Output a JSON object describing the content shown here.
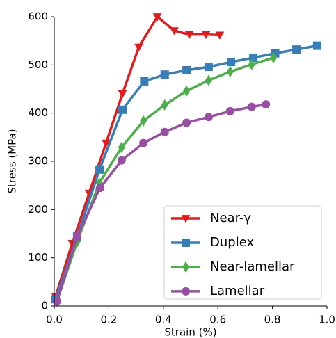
{
  "chart_data": {
    "type": "line",
    "xlabel": "Strain (%)",
    "ylabel": "Stress (MPa)",
    "xlim": [
      0,
      1
    ],
    "ylim": [
      0,
      600
    ],
    "xticks": [
      {
        "value": 0,
        "label": "0.0"
      },
      {
        "value": 0.2,
        "label": "0.2"
      },
      {
        "value": 0.4,
        "label": "0.4"
      },
      {
        "value": 0.6,
        "label": "0.6"
      },
      {
        "value": 0.8,
        "label": "0.8"
      },
      {
        "value": 1,
        "label": "1.0"
      }
    ],
    "yticks": [
      0,
      100,
      200,
      300,
      400,
      500,
      600
    ],
    "legend": "lower right",
    "series": [
      {
        "name": "Near-γ",
        "color": "#e41a1c",
        "marker": "triangle-down",
        "x": [
          0.005,
          0.066,
          0.128,
          0.19,
          0.25,
          0.31,
          0.378,
          0.44,
          0.495,
          0.556,
          0.607
        ],
        "values": [
          20,
          130,
          234,
          338,
          440,
          537,
          600,
          571,
          563,
          563,
          562
        ]
      },
      {
        "name": "Duplex",
        "color": "#377eb8",
        "marker": "square",
        "x": [
          0.005,
          0.084,
          0.166,
          0.25,
          0.33,
          0.405,
          0.485,
          0.566,
          0.648,
          0.73,
          0.81,
          0.888,
          0.964
        ],
        "values": [
          14,
          144,
          283,
          407,
          466,
          480,
          489,
          496,
          506,
          515,
          524,
          532,
          540
        ]
      },
      {
        "name": "Near-lamellar",
        "color": "#4daf4a",
        "marker": "diamond",
        "x": [
          0.01,
          0.084,
          0.165,
          0.247,
          0.327,
          0.405,
          0.485,
          0.566,
          0.645,
          0.724,
          0.804
        ],
        "values": [
          10,
          133,
          255,
          329,
          384,
          417,
          446,
          468,
          486,
          501,
          515
        ]
      },
      {
        "name": "Lamellar",
        "color": "#984ea3",
        "marker": "circle",
        "x": [
          0.01,
          0.084,
          0.168,
          0.247,
          0.327,
          0.405,
          0.485,
          0.566,
          0.645,
          0.724,
          0.776
        ],
        "values": [
          10,
          144,
          245,
          302,
          338,
          361,
          380,
          392,
          404,
          413,
          418
        ]
      }
    ]
  }
}
